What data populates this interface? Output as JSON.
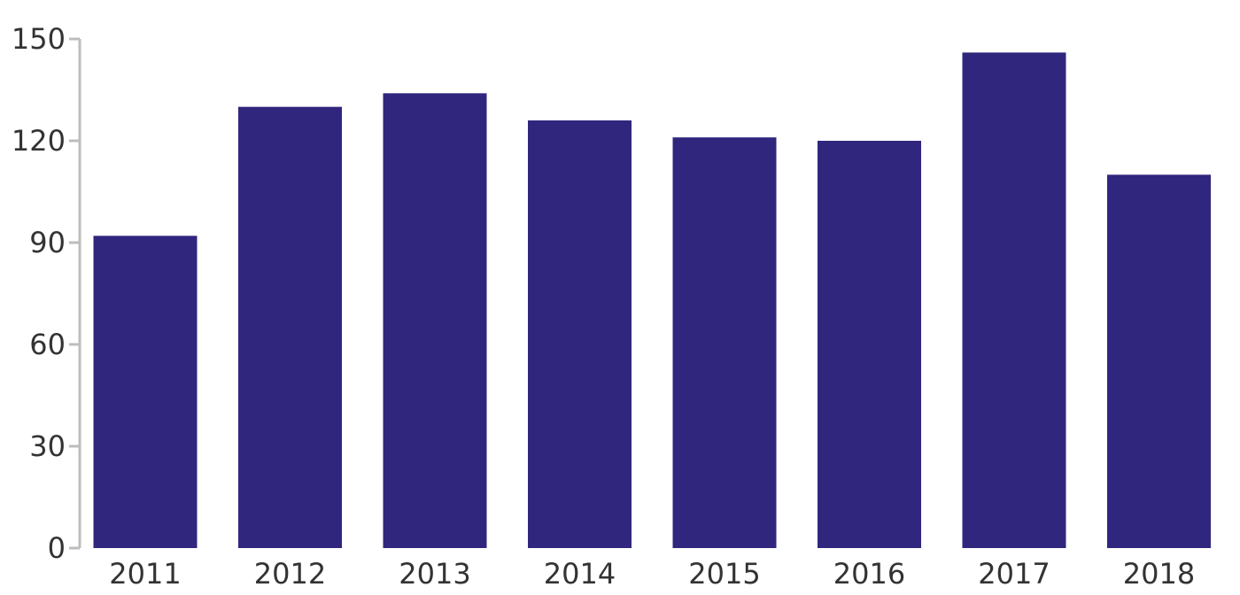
{
  "chart_data": {
    "type": "bar",
    "categories": [
      "2011",
      "2012",
      "2013",
      "2014",
      "2015",
      "2016",
      "2017",
      "2018"
    ],
    "values": [
      92,
      130,
      134,
      126,
      121,
      120,
      146,
      110
    ],
    "title": "",
    "xlabel": "",
    "ylabel": "",
    "ylim": [
      0,
      150
    ],
    "yticks": [
      0,
      30,
      60,
      90,
      120,
      150
    ],
    "ytick_labels": [
      "0",
      "30",
      "60",
      "90",
      "120",
      "150"
    ],
    "grid": false,
    "legend": "none",
    "bar_color": "#30267e"
  }
}
